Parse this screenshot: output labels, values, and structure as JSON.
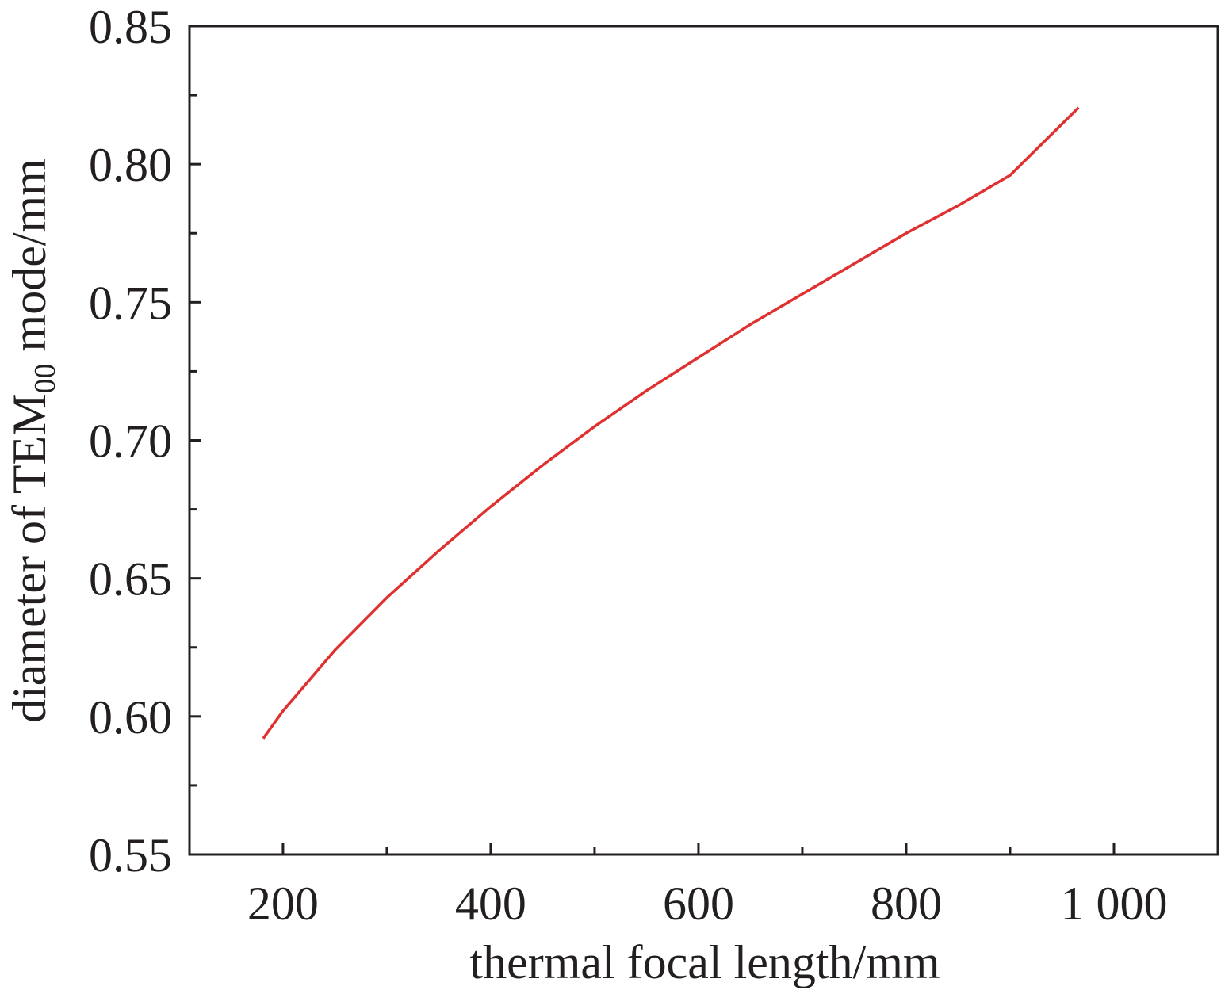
{
  "chart_data": {
    "type": "line",
    "xlabel": "thermal focal length/mm",
    "ylabel": {
      "prefix": "diameter of TEM",
      "subscript": "00",
      "suffix": " mode/mm"
    },
    "xlim": [
      110,
      1100
    ],
    "ylim": [
      0.55,
      0.85
    ],
    "x_ticks_major": [
      200,
      400,
      600,
      800,
      1000
    ],
    "x_tick_labels": [
      "200",
      "400",
      "600",
      "800",
      "1 000"
    ],
    "x_ticks_minor": [
      300,
      500,
      700,
      900
    ],
    "y_ticks_major": [
      0.55,
      0.6,
      0.65,
      0.7,
      0.75,
      0.8,
      0.85
    ],
    "y_tick_labels": [
      "0.55",
      "0.60",
      "0.65",
      "0.70",
      "0.75",
      "0.80",
      "0.85"
    ],
    "y_ticks_minor": [
      0.575,
      0.625,
      0.675,
      0.725,
      0.775,
      0.825
    ],
    "grid": false,
    "colors": {
      "series": "#e03131",
      "axis": "#231f20"
    },
    "series": [
      {
        "x": [
          181,
          200,
          250,
          300,
          350,
          400,
          450,
          500,
          550,
          600,
          650,
          700,
          750,
          800,
          850,
          900,
          966
        ],
        "y": [
          0.592,
          0.602,
          0.624,
          0.643,
          0.66,
          0.676,
          0.691,
          0.705,
          0.718,
          0.73,
          0.742,
          0.753,
          0.764,
          0.775,
          0.785,
          0.796,
          0.8205
        ]
      }
    ]
  }
}
